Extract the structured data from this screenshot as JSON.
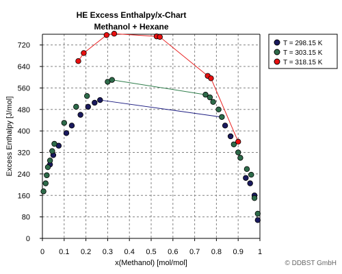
{
  "chart_data": {
    "type": "scatter",
    "title": "HE Excess Enthalpy/x-Chart",
    "subtitle": "Methanol + Hexane",
    "xlabel": "x(Methanol) [mol/mol]",
    "ylabel": "Excess Enthalpy [J/mol]",
    "xlim": [
      0,
      1
    ],
    "ylim": [
      0,
      760
    ],
    "x_ticks": [
      "0",
      "0.1",
      "0.2",
      "0.3",
      "0.4",
      "0.5",
      "0.6",
      "0.7",
      "0.8",
      "0.9",
      "1"
    ],
    "x_tick_values": [
      0,
      0.1,
      0.2,
      0.3,
      0.4,
      0.5,
      0.6,
      0.7,
      0.8,
      0.9,
      1.0
    ],
    "y_ticks": [
      "0",
      "80",
      "160",
      "240",
      "320",
      "400",
      "480",
      "560",
      "640",
      "720"
    ],
    "y_tick_values": [
      0,
      80,
      160,
      240,
      320,
      400,
      480,
      560,
      640,
      720
    ],
    "grid": true,
    "legend_position": "top-right",
    "series": [
      {
        "name": "T = 298.15 K",
        "color": "#1a1a5e",
        "line_color": "#1a1a80",
        "points": [
          [
            0.035,
            275
          ],
          [
            0.05,
            310
          ],
          [
            0.075,
            345
          ],
          [
            0.11,
            392
          ],
          [
            0.135,
            420
          ],
          [
            0.175,
            460
          ],
          [
            0.21,
            490
          ],
          [
            0.24,
            505
          ],
          [
            0.265,
            515
          ],
          [
            0.84,
            420
          ],
          [
            0.865,
            380
          ],
          [
            0.935,
            225
          ],
          [
            0.955,
            205
          ],
          [
            0.975,
            160
          ],
          [
            0.99,
            68
          ]
        ],
        "line": [
          [
            0.265,
            515
          ],
          [
            0.82,
            452
          ]
        ]
      },
      {
        "name": "T = 303.15 K",
        "color": "#2e6b4a",
        "line_color": "#2e7d4a",
        "points": [
          [
            0.005,
            175
          ],
          [
            0.015,
            205
          ],
          [
            0.02,
            235
          ],
          [
            0.025,
            265
          ],
          [
            0.035,
            290
          ],
          [
            0.045,
            325
          ],
          [
            0.055,
            352
          ],
          [
            0.1,
            430
          ],
          [
            0.155,
            490
          ],
          [
            0.205,
            530
          ],
          [
            0.3,
            583
          ],
          [
            0.32,
            590
          ],
          [
            0.75,
            535
          ],
          [
            0.77,
            525
          ],
          [
            0.785,
            508
          ],
          [
            0.81,
            480
          ],
          [
            0.825,
            452
          ],
          [
            0.88,
            350
          ],
          [
            0.9,
            320
          ],
          [
            0.91,
            300
          ],
          [
            0.94,
            258
          ],
          [
            0.96,
            237
          ],
          [
            0.975,
            150
          ],
          [
            0.99,
            92
          ]
        ],
        "line": [
          [
            0.32,
            590
          ],
          [
            0.75,
            535
          ]
        ]
      },
      {
        "name": "T = 318.15 K",
        "color": "#e81010",
        "line_color": "#e82020",
        "points": [
          [
            0.165,
            660
          ],
          [
            0.19,
            690
          ],
          [
            0.295,
            757
          ],
          [
            0.33,
            762
          ],
          [
            0.525,
            752
          ],
          [
            0.54,
            750
          ],
          [
            0.76,
            605
          ],
          [
            0.775,
            596
          ],
          [
            0.9,
            360
          ]
        ],
        "line": [
          [
            0.165,
            660
          ],
          [
            0.19,
            690
          ],
          [
            0.295,
            757
          ],
          [
            0.33,
            762
          ],
          [
            0.525,
            752
          ],
          [
            0.54,
            750
          ],
          [
            0.76,
            605
          ],
          [
            0.775,
            596
          ],
          [
            0.9,
            360
          ]
        ]
      }
    ]
  },
  "copyright": "© DDBST GmbH"
}
